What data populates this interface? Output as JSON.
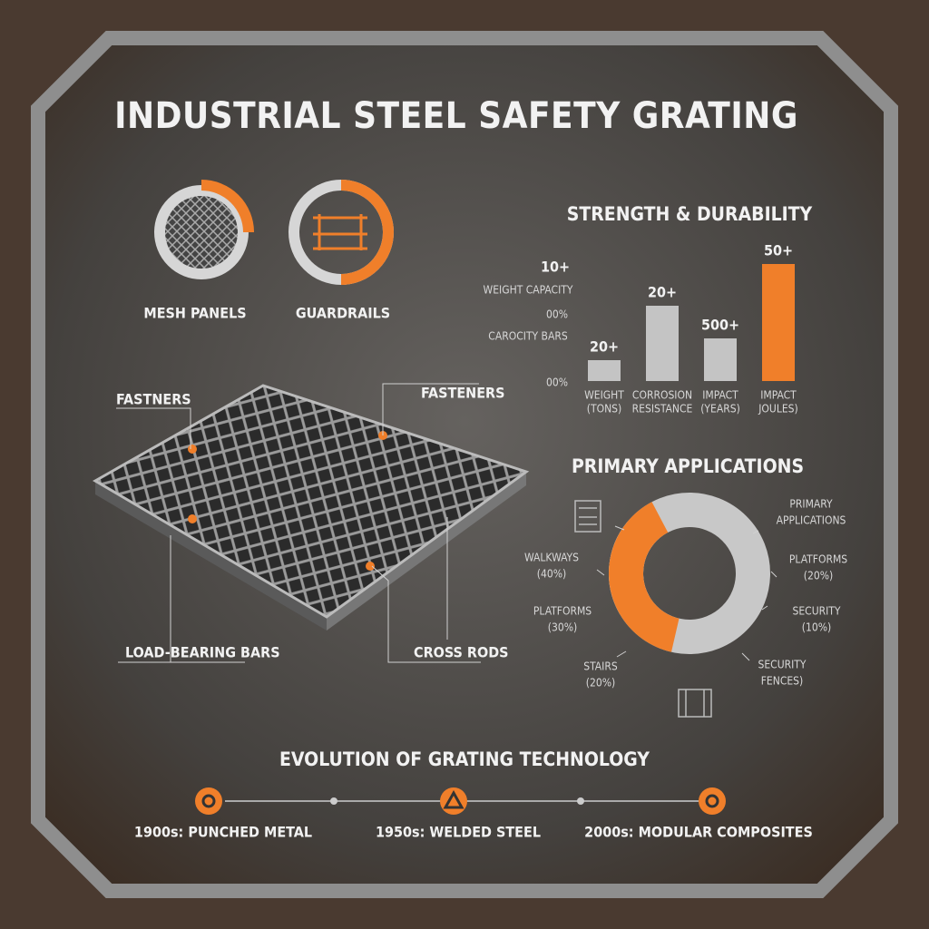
{
  "title": "INDUSTRIAL STEEL SAFETY GRATING",
  "icons": [
    {
      "label": "MESH PANELS"
    },
    {
      "label": "GUARDRAILS"
    }
  ],
  "diagram": {
    "callouts": [
      "FASTNERS",
      "FASTENERS",
      "LOAD-BEARING BARS",
      "CROSS RODS"
    ]
  },
  "strength": {
    "title": "STRENGTH & DURABILITY",
    "axis_labels": [
      "10+",
      "WEIGHT CAPACITY",
      "00%",
      "CAROCITY BARS",
      "00%"
    ],
    "bars": [
      {
        "label": "20+",
        "category": [
          "WEIGHT",
          "(TONS)"
        ]
      },
      {
        "label": "20+",
        "category": [
          "CORROSION",
          "RESISTANCE"
        ]
      },
      {
        "label": "500+",
        "category": [
          "IMPACT",
          "(YEARS)"
        ]
      },
      {
        "label": "50+",
        "category": [
          "IMPACT",
          "JOULES)"
        ]
      }
    ]
  },
  "applications": {
    "title": "PRIMARY APPLICATIONS",
    "labels": [
      [
        "PRIMARY",
        "APPLICATIONS"
      ],
      [
        "PLATFORMS",
        "(20%)"
      ],
      [
        "SECURITY",
        "(10%)"
      ],
      [
        "SECURITY",
        "FENCES)"
      ],
      [
        "STAIRS",
        "(20%)"
      ],
      [
        "PLATFORMS",
        "(30%)"
      ],
      [
        "WALKWAYS",
        "(40%)"
      ]
    ]
  },
  "timeline": {
    "title": "EVOLUTION OF GRATING TECHNOLOGY",
    "steps": [
      "1900s: PUNCHED METAL",
      "1950s: WELDED STEEL",
      "2000s: MODULAR COMPOSITES"
    ]
  }
}
